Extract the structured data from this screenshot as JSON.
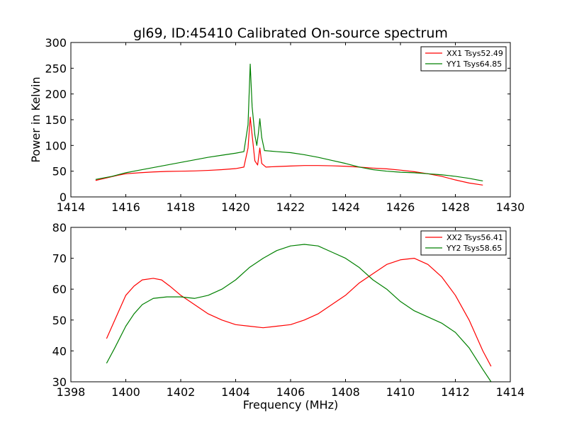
{
  "chart_data": [
    {
      "type": "line",
      "title": "gl69, ID:45410 Calibrated On-source spectrum",
      "xlabel": "",
      "ylabel": "Power in Kelvin",
      "xlim": [
        1414,
        1430
      ],
      "ylim": [
        0,
        300
      ],
      "xticks": [
        1414,
        1416,
        1418,
        1420,
        1422,
        1424,
        1426,
        1428,
        1430
      ],
      "yticks": [
        0,
        50,
        100,
        150,
        200,
        250,
        300
      ],
      "grid": false,
      "legend_position": "top-right",
      "series": [
        {
          "name": "XX1 Tsys52.49",
          "color": "#ff0000",
          "points": [
            [
              1414.9,
              32
            ],
            [
              1415.3,
              37
            ],
            [
              1415.7,
              42
            ],
            [
              1416.0,
              45
            ],
            [
              1416.5,
              47
            ],
            [
              1417.0,
              48.5
            ],
            [
              1417.5,
              49.5
            ],
            [
              1418.0,
              50
            ],
            [
              1418.5,
              50.5
            ],
            [
              1419.0,
              51.5
            ],
            [
              1419.5,
              53
            ],
            [
              1420.0,
              55
            ],
            [
              1420.3,
              58
            ],
            [
              1420.45,
              95
            ],
            [
              1420.53,
              155
            ],
            [
              1420.6,
              120
            ],
            [
              1420.7,
              70
            ],
            [
              1420.8,
              62
            ],
            [
              1420.88,
              95
            ],
            [
              1420.95,
              65
            ],
            [
              1421.1,
              58
            ],
            [
              1421.5,
              59
            ],
            [
              1422.0,
              60
            ],
            [
              1422.5,
              61
            ],
            [
              1423.0,
              61
            ],
            [
              1423.5,
              60.5
            ],
            [
              1424.0,
              59.5
            ],
            [
              1424.5,
              58
            ],
            [
              1425.0,
              56
            ],
            [
              1425.5,
              54.5
            ],
            [
              1426.0,
              52
            ],
            [
              1426.5,
              49
            ],
            [
              1427.0,
              45
            ],
            [
              1427.5,
              40
            ],
            [
              1428.0,
              33
            ],
            [
              1428.5,
              27
            ],
            [
              1429.0,
              23
            ]
          ]
        },
        {
          "name": "YY1 Tsys64.85",
          "color": "#008000",
          "points": [
            [
              1414.9,
              34
            ],
            [
              1415.5,
              40
            ],
            [
              1416.0,
              47
            ],
            [
              1416.5,
              52
            ],
            [
              1417.0,
              57
            ],
            [
              1417.5,
              62
            ],
            [
              1418.0,
              67
            ],
            [
              1418.5,
              72
            ],
            [
              1419.0,
              77
            ],
            [
              1419.5,
              81
            ],
            [
              1420.0,
              85
            ],
            [
              1420.3,
              88
            ],
            [
              1420.45,
              140
            ],
            [
              1420.53,
              258
            ],
            [
              1420.6,
              175
            ],
            [
              1420.7,
              120
            ],
            [
              1420.77,
              100
            ],
            [
              1420.83,
              125
            ],
            [
              1420.88,
              152
            ],
            [
              1420.95,
              115
            ],
            [
              1421.05,
              90
            ],
            [
              1421.5,
              88
            ],
            [
              1422.0,
              86
            ],
            [
              1422.5,
              82
            ],
            [
              1423.0,
              77
            ],
            [
              1423.5,
              71
            ],
            [
              1424.0,
              65
            ],
            [
              1424.5,
              58
            ],
            [
              1425.0,
              53
            ],
            [
              1425.5,
              50
            ],
            [
              1426.0,
              48
            ],
            [
              1426.5,
              47
            ],
            [
              1427.0,
              45
            ],
            [
              1427.5,
              43
            ],
            [
              1428.0,
              40
            ],
            [
              1428.5,
              36
            ],
            [
              1429.0,
              31
            ]
          ]
        }
      ]
    },
    {
      "type": "line",
      "title": "",
      "xlabel": "Frequency (MHz)",
      "ylabel": "",
      "xlim": [
        1398,
        1414
      ],
      "ylim": [
        30,
        80
      ],
      "xticks": [
        1398,
        1400,
        1402,
        1404,
        1406,
        1408,
        1410,
        1412,
        1414
      ],
      "yticks": [
        30,
        40,
        50,
        60,
        70,
        80
      ],
      "grid": false,
      "legend_position": "top-right",
      "series": [
        {
          "name": "XX2 Tsys56.41",
          "color": "#ff0000",
          "points": [
            [
              1399.3,
              44
            ],
            [
              1399.6,
              50
            ],
            [
              1400.0,
              58
            ],
            [
              1400.3,
              61
            ],
            [
              1400.6,
              63
            ],
            [
              1401.0,
              63.5
            ],
            [
              1401.3,
              63
            ],
            [
              1401.6,
              61
            ],
            [
              1402.0,
              58
            ],
            [
              1402.5,
              55
            ],
            [
              1403.0,
              52
            ],
            [
              1403.5,
              50
            ],
            [
              1404.0,
              48.5
            ],
            [
              1404.5,
              48
            ],
            [
              1405.0,
              47.5
            ],
            [
              1405.5,
              48
            ],
            [
              1406.0,
              48.5
            ],
            [
              1406.5,
              50
            ],
            [
              1407.0,
              52
            ],
            [
              1407.5,
              55
            ],
            [
              1408.0,
              58
            ],
            [
              1408.5,
              62
            ],
            [
              1409.0,
              65
            ],
            [
              1409.5,
              68
            ],
            [
              1410.0,
              69.5
            ],
            [
              1410.5,
              70
            ],
            [
              1411.0,
              68
            ],
            [
              1411.5,
              64
            ],
            [
              1412.0,
              58
            ],
            [
              1412.5,
              50
            ],
            [
              1413.0,
              40
            ],
            [
              1413.3,
              35
            ]
          ]
        },
        {
          "name": "YY2 Tsys58.65",
          "color": "#008000",
          "points": [
            [
              1399.3,
              36
            ],
            [
              1399.6,
              41
            ],
            [
              1400.0,
              48
            ],
            [
              1400.3,
              52
            ],
            [
              1400.6,
              55
            ],
            [
              1401.0,
              57
            ],
            [
              1401.5,
              57.5
            ],
            [
              1402.0,
              57.5
            ],
            [
              1402.5,
              57
            ],
            [
              1403.0,
              58
            ],
            [
              1403.5,
              60
            ],
            [
              1404.0,
              63
            ],
            [
              1404.5,
              67
            ],
            [
              1405.0,
              70
            ],
            [
              1405.5,
              72.5
            ],
            [
              1406.0,
              74
            ],
            [
              1406.5,
              74.5
            ],
            [
              1407.0,
              74
            ],
            [
              1407.5,
              72
            ],
            [
              1408.0,
              70
            ],
            [
              1408.5,
              67
            ],
            [
              1409.0,
              63
            ],
            [
              1409.5,
              60
            ],
            [
              1410.0,
              56
            ],
            [
              1410.5,
              53
            ],
            [
              1411.0,
              51
            ],
            [
              1411.5,
              49
            ],
            [
              1412.0,
              46
            ],
            [
              1412.5,
              41
            ],
            [
              1413.0,
              34
            ],
            [
              1413.3,
              30
            ]
          ]
        }
      ]
    }
  ]
}
